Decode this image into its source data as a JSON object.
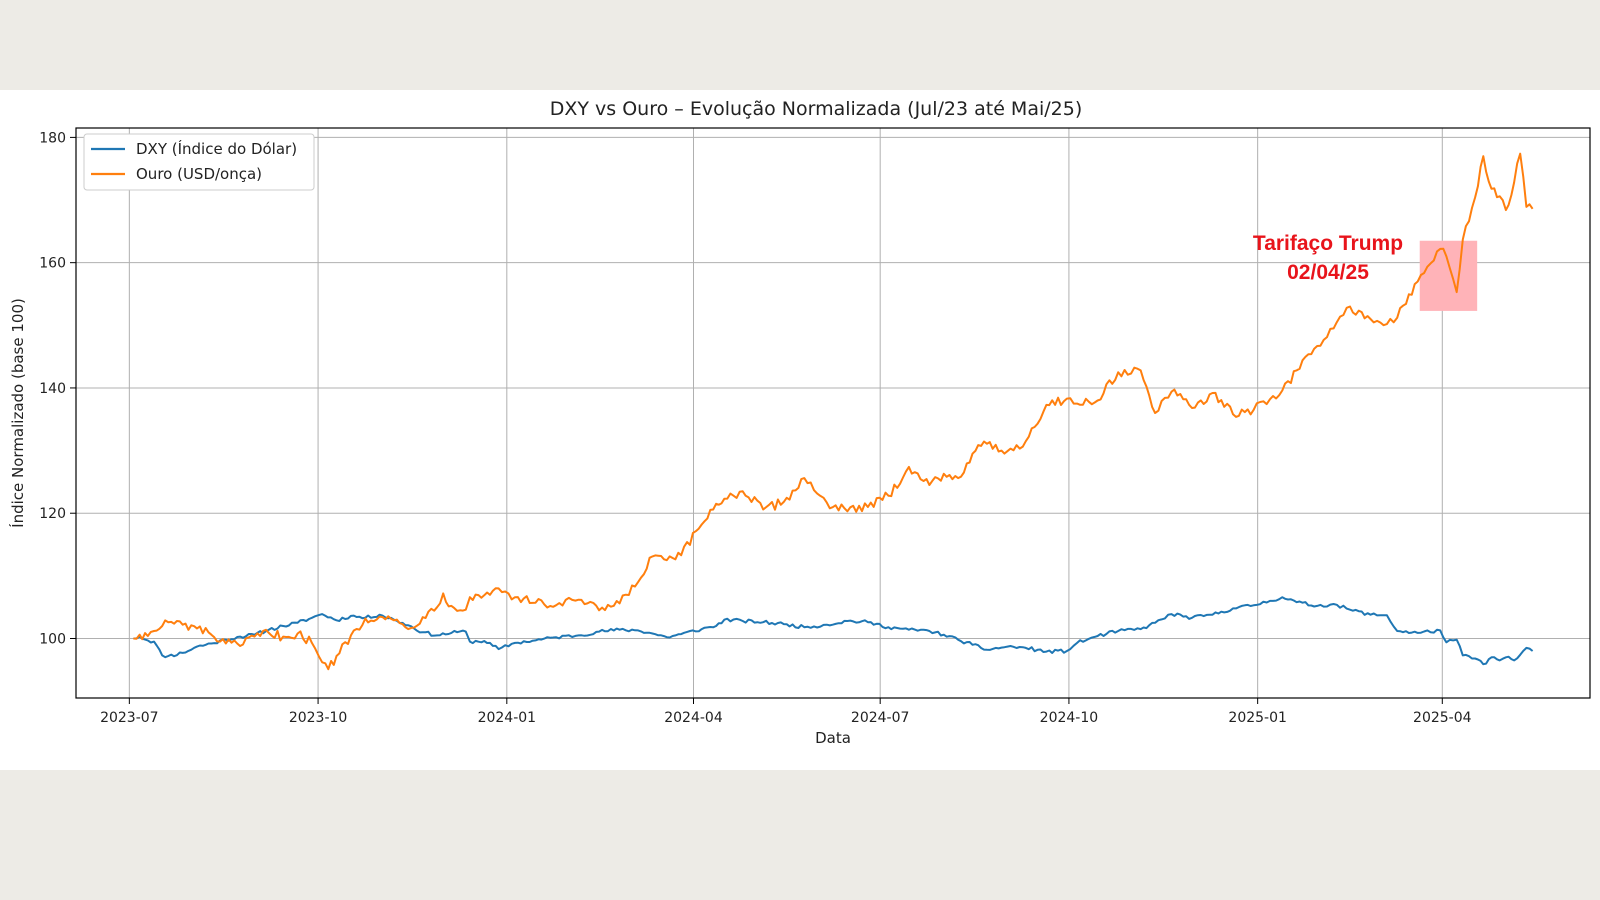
{
  "chart_data": {
    "type": "line",
    "title": "DXY vs Ouro – Evolução Normalizada (Jul/23 até Mai/25)",
    "xlabel": "Data",
    "ylabel": "Índice Normalizado (base 100)",
    "x_ticks": [
      "2023-07",
      "2023-10",
      "2024-01",
      "2024-04",
      "2024-07",
      "2024-10",
      "2025-01",
      "2025-04"
    ],
    "y_ticks": [
      "100",
      "120",
      "140",
      "160",
      "180"
    ],
    "xlim": [
      "2023-06-05",
      "2025-06-12"
    ],
    "ylim": [
      90.5,
      181.5
    ],
    "grid": true,
    "legend_position": "top-left",
    "series": [
      {
        "name": "DXY (Índice do Dólar)",
        "color": "#1f77b4",
        "points": [
          [
            "2023-07-03",
            100.0
          ],
          [
            "2023-07-06",
            100.3
          ],
          [
            "2023-07-10",
            99.7
          ],
          [
            "2023-07-13",
            99.5
          ],
          [
            "2023-07-17",
            97.3
          ],
          [
            "2023-07-20",
            97.2
          ],
          [
            "2023-07-27",
            97.7
          ],
          [
            "2023-08-03",
            98.7
          ],
          [
            "2023-08-10",
            99.2
          ],
          [
            "2023-08-17",
            99.8
          ],
          [
            "2023-08-24",
            100.3
          ],
          [
            "2023-08-31",
            100.6
          ],
          [
            "2023-09-07",
            101.4
          ],
          [
            "2023-09-14",
            102.0
          ],
          [
            "2023-09-21",
            102.5
          ],
          [
            "2023-09-28",
            103.3
          ],
          [
            "2023-10-03",
            103.9
          ],
          [
            "2023-10-10",
            102.9
          ],
          [
            "2023-10-17",
            103.6
          ],
          [
            "2023-10-24",
            103.3
          ],
          [
            "2023-10-31",
            103.8
          ],
          [
            "2023-11-07",
            103.0
          ],
          [
            "2023-11-14",
            102.1
          ],
          [
            "2023-11-21",
            101.0
          ],
          [
            "2023-11-28",
            100.5
          ],
          [
            "2023-12-05",
            100.9
          ],
          [
            "2023-12-12",
            101.1
          ],
          [
            "2023-12-14",
            99.5
          ],
          [
            "2023-12-21",
            99.6
          ],
          [
            "2023-12-28",
            98.3
          ],
          [
            "2024-01-05",
            99.3
          ],
          [
            "2024-01-15",
            99.7
          ],
          [
            "2024-01-25",
            100.2
          ],
          [
            "2024-02-05",
            100.5
          ],
          [
            "2024-02-15",
            101.1
          ],
          [
            "2024-02-25",
            101.4
          ],
          [
            "2024-03-05",
            101.3
          ],
          [
            "2024-03-12",
            100.8
          ],
          [
            "2024-03-19",
            100.2
          ],
          [
            "2024-03-26",
            100.7
          ],
          [
            "2024-04-05",
            101.5
          ],
          [
            "2024-04-12",
            102.0
          ],
          [
            "2024-04-16",
            103.0
          ],
          [
            "2024-04-25",
            102.8
          ],
          [
            "2024-05-05",
            102.6
          ],
          [
            "2024-05-15",
            102.3
          ],
          [
            "2024-05-25",
            101.8
          ],
          [
            "2024-06-05",
            102.2
          ],
          [
            "2024-06-15",
            102.8
          ],
          [
            "2024-06-25",
            102.6
          ],
          [
            "2024-07-05",
            101.8
          ],
          [
            "2024-07-15",
            101.4
          ],
          [
            "2024-07-25",
            101.2
          ],
          [
            "2024-08-01",
            100.6
          ],
          [
            "2024-08-08",
            99.8
          ],
          [
            "2024-08-15",
            99.0
          ],
          [
            "2024-08-22",
            98.2
          ],
          [
            "2024-09-01",
            98.7
          ],
          [
            "2024-09-10",
            98.5
          ],
          [
            "2024-09-20",
            97.9
          ],
          [
            "2024-09-30",
            98.0
          ],
          [
            "2024-10-05",
            99.3
          ],
          [
            "2024-10-15",
            100.4
          ],
          [
            "2024-10-25",
            101.2
          ],
          [
            "2024-11-05",
            101.5
          ],
          [
            "2024-11-12",
            102.5
          ],
          [
            "2024-11-20",
            103.9
          ],
          [
            "2024-11-30",
            103.3
          ],
          [
            "2024-12-10",
            103.8
          ],
          [
            "2024-12-20",
            104.8
          ],
          [
            "2024-12-30",
            105.3
          ],
          [
            "2025-01-07",
            106.0
          ],
          [
            "2025-01-13",
            106.6
          ],
          [
            "2025-01-20",
            105.8
          ],
          [
            "2025-01-30",
            105.2
          ],
          [
            "2025-02-07",
            105.5
          ],
          [
            "2025-02-15",
            104.6
          ],
          [
            "2025-02-25",
            103.8
          ],
          [
            "2025-03-05",
            103.7
          ],
          [
            "2025-03-10",
            101.2
          ],
          [
            "2025-03-20",
            100.9
          ],
          [
            "2025-03-31",
            101.3
          ],
          [
            "2025-04-03",
            99.4
          ],
          [
            "2025-04-08",
            99.8
          ],
          [
            "2025-04-11",
            97.3
          ],
          [
            "2025-04-17",
            96.8
          ],
          [
            "2025-04-21",
            95.9
          ],
          [
            "2025-04-25",
            97.0
          ],
          [
            "2025-04-29",
            96.5
          ],
          [
            "2025-05-02",
            97.0
          ],
          [
            "2025-05-06",
            96.5
          ],
          [
            "2025-05-09",
            97.4
          ],
          [
            "2025-05-12",
            98.5
          ],
          [
            "2025-05-15",
            98.0
          ]
        ]
      },
      {
        "name": "Ouro (USD/onça)",
        "color": "#ff7f0e",
        "points": [
          [
            "2023-07-03",
            100.0
          ],
          [
            "2023-07-06",
            100.6
          ],
          [
            "2023-07-10",
            100.4
          ],
          [
            "2023-07-13",
            101.2
          ],
          [
            "2023-07-17",
            102.0
          ],
          [
            "2023-07-20",
            102.6
          ],
          [
            "2023-07-27",
            102.2
          ],
          [
            "2023-08-03",
            101.6
          ],
          [
            "2023-08-10",
            100.6
          ],
          [
            "2023-08-17",
            99.2
          ],
          [
            "2023-08-24",
            98.8
          ],
          [
            "2023-08-31",
            100.3
          ],
          [
            "2023-09-07",
            100.9
          ],
          [
            "2023-09-14",
            100.3
          ],
          [
            "2023-09-21",
            100.8
          ],
          [
            "2023-09-28",
            99.3
          ],
          [
            "2023-10-03",
            96.2
          ],
          [
            "2023-10-06",
            95.1
          ],
          [
            "2023-10-10",
            97.2
          ],
          [
            "2023-10-17",
            100.5
          ],
          [
            "2023-10-24",
            103.2
          ],
          [
            "2023-10-31",
            103.5
          ],
          [
            "2023-11-07",
            102.9
          ],
          [
            "2023-11-14",
            101.5
          ],
          [
            "2023-11-21",
            103.4
          ],
          [
            "2023-11-28",
            105.0
          ],
          [
            "2023-12-01",
            107.2
          ],
          [
            "2023-12-05",
            105.2
          ],
          [
            "2023-12-12",
            104.6
          ],
          [
            "2023-12-14",
            106.6
          ],
          [
            "2023-12-21",
            106.9
          ],
          [
            "2023-12-28",
            108.0
          ],
          [
            "2024-01-05",
            106.6
          ],
          [
            "2024-01-15",
            105.7
          ],
          [
            "2024-01-25",
            105.3
          ],
          [
            "2024-02-05",
            106.2
          ],
          [
            "2024-02-15",
            104.5
          ],
          [
            "2024-02-25",
            105.6
          ],
          [
            "2024-03-05",
            109.0
          ],
          [
            "2024-03-12",
            113.1
          ],
          [
            "2024-03-19",
            112.5
          ],
          [
            "2024-03-26",
            113.3
          ],
          [
            "2024-04-05",
            118.2
          ],
          [
            "2024-04-12",
            121.5
          ],
          [
            "2024-04-16",
            122.3
          ],
          [
            "2024-04-25",
            123.5
          ],
          [
            "2024-05-05",
            120.6
          ],
          [
            "2024-05-15",
            121.8
          ],
          [
            "2024-05-25",
            125.6
          ],
          [
            "2024-06-05",
            121.7
          ],
          [
            "2024-06-15",
            120.3
          ],
          [
            "2024-06-25",
            121.0
          ],
          [
            "2024-07-05",
            122.8
          ],
          [
            "2024-07-15",
            127.4
          ],
          [
            "2024-07-25",
            124.5
          ],
          [
            "2024-08-01",
            126.3
          ],
          [
            "2024-08-08",
            125.6
          ],
          [
            "2024-08-15",
            129.5
          ],
          [
            "2024-08-22",
            131.1
          ],
          [
            "2024-09-01",
            129.9
          ],
          [
            "2024-09-10",
            131.5
          ],
          [
            "2024-09-20",
            137.3
          ],
          [
            "2024-09-30",
            138.3
          ],
          [
            "2024-10-05",
            137.5
          ],
          [
            "2024-10-15",
            138.0
          ],
          [
            "2024-10-25",
            142.5
          ],
          [
            "2024-11-05",
            142.8
          ],
          [
            "2024-11-12",
            136.0
          ],
          [
            "2024-11-20",
            139.4
          ],
          [
            "2024-11-30",
            136.8
          ],
          [
            "2024-12-10",
            139.2
          ],
          [
            "2024-12-20",
            135.8
          ],
          [
            "2024-12-30",
            136.5
          ],
          [
            "2025-01-07",
            138.2
          ],
          [
            "2025-01-13",
            139.6
          ],
          [
            "2025-01-20",
            142.8
          ],
          [
            "2025-01-30",
            146.7
          ],
          [
            "2025-02-07",
            149.5
          ],
          [
            "2025-02-15",
            153.0
          ],
          [
            "2025-02-25",
            151.0
          ],
          [
            "2025-03-05",
            150.2
          ],
          [
            "2025-03-10",
            151.2
          ],
          [
            "2025-03-20",
            157.0
          ],
          [
            "2025-03-31",
            162.2
          ],
          [
            "2025-04-03",
            161.0
          ],
          [
            "2025-04-08",
            155.3
          ],
          [
            "2025-04-11",
            163.7
          ],
          [
            "2025-04-17",
            170.4
          ],
          [
            "2025-04-21",
            177.0
          ],
          [
            "2025-04-25",
            171.8
          ],
          [
            "2025-04-29",
            170.6
          ],
          [
            "2025-05-02",
            168.4
          ],
          [
            "2025-05-06",
            172.8
          ],
          [
            "2025-05-09",
            177.4
          ],
          [
            "2025-05-12",
            168.9
          ],
          [
            "2025-05-15",
            168.6
          ]
        ]
      }
    ],
    "annotation": {
      "text_line1": "Tarifaço Trump",
      "text_line2": "02/04/25",
      "color": "#e8141b",
      "highlight_color": "#ffb3b8",
      "highlight_x_range": [
        "2025-03-21",
        "2025-04-18"
      ],
      "highlight_y_range": [
        152.3,
        163.5
      ]
    }
  }
}
